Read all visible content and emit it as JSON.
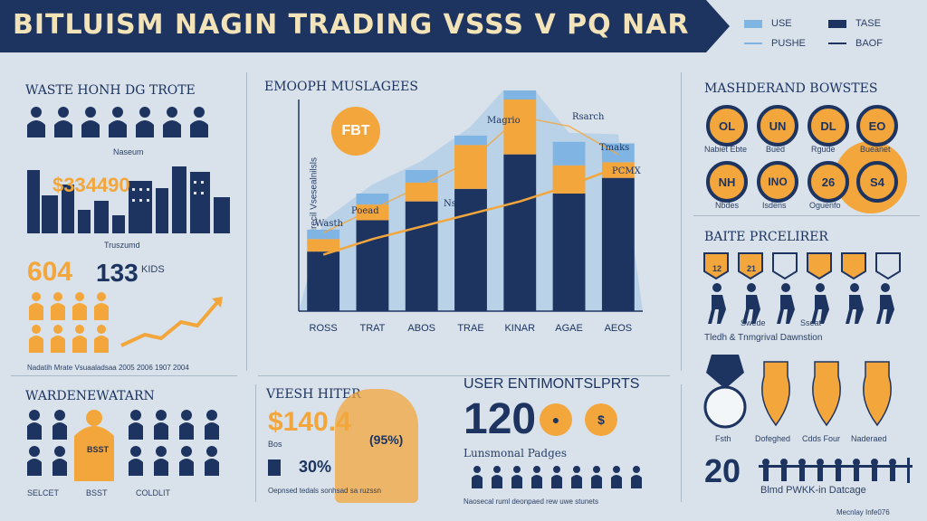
{
  "header": {
    "title": "BITLUISM NAGIN TRADING VSSS V PQ NAR"
  },
  "legend": [
    {
      "label": "USE",
      "kind": "swatch",
      "color": "#7fb4e3"
    },
    {
      "label": "TASE",
      "kind": "swatch",
      "color": "#1d3461"
    },
    {
      "label": "PUSHE",
      "kind": "dash",
      "color": "#7fb4e3"
    },
    {
      "label": "BAOF",
      "kind": "dash",
      "color": "#1d3461"
    }
  ],
  "left_top": {
    "title": "WASTE HONH DG TROTE",
    "caption": "Naseum",
    "building_value": "$334490",
    "building_caption": "Truszumd"
  },
  "left_mid": {
    "value_a": "604",
    "value_b": "133",
    "value_b_unit": "KIDS",
    "years_caption": "Nadatih Mrate Vsuaaladsaa 2005 2006 1907 2004"
  },
  "left_bottom": {
    "title": "WARDENEWATARN",
    "highlight_label": "BSST",
    "captions": [
      "SELCET",
      "BSST",
      "COLDLIT"
    ]
  },
  "center_chart": {
    "title": "EMOOPH MUSLAGEES",
    "badge": "FBT",
    "y_axis_label": "Dsdan Mrecil Vsesealnilsls",
    "annotations": [
      "Wasth",
      "Poead",
      "Nsulgn",
      "Magrio",
      "Rsarch",
      "Tmaks",
      "PCMX"
    ]
  },
  "chart_data": {
    "type": "bar",
    "title": "EMOOPH MUSLAGEES",
    "categories": [
      "ROSS",
      "TRAT",
      "ABOS",
      "TRAE",
      "KINAR",
      "AGAE",
      "AEOS"
    ],
    "series": [
      {
        "values": [
          38,
          58,
          70,
          78,
          100,
          75,
          85
        ]
      },
      {
        "values": [
          8,
          10,
          12,
          28,
          35,
          18,
          10
        ]
      },
      {
        "values": [
          6,
          7,
          8,
          6,
          12,
          15,
          12
        ]
      }
    ],
    "lines": [
      {
        "values": [
          36,
          46,
          54,
          62,
          70,
          80,
          92
        ]
      },
      {
        "values": [
          50,
          65,
          80,
          96,
          124,
          118,
          100
        ]
      }
    ],
    "ylim": [
      0,
      135
    ],
    "grid": false
  },
  "mid_bottom": {
    "title": "VEESH HITER",
    "value": "$140.4",
    "value_note": "(95%)",
    "pct": "30%",
    "pct_note": "Oepnsed tedals sonhsad sa ruzssn",
    "note": "Bos"
  },
  "user_stats": {
    "title": "USER ENTIMONTSLPRTS",
    "value": "120",
    "caption": "Lunsmonal Padges",
    "footer": "Naosecal ruml deonpaed rew uwe stunets"
  },
  "right_top": {
    "title": "MASHDERAND BOWSTES",
    "circles": [
      {
        "code": "OL",
        "label": "Nabiet Ebte"
      },
      {
        "code": "UN",
        "label": "Bued"
      },
      {
        "code": "DL",
        "label": "Rgude"
      },
      {
        "code": "EO",
        "label": "Bueanet"
      },
      {
        "code": "NH",
        "label": "Nbdes"
      },
      {
        "code": "INO",
        "label": "Isdens"
      },
      {
        "code": "26",
        "label": "Oguenfo"
      },
      {
        "code": "S4",
        "label": ""
      }
    ]
  },
  "right_mid": {
    "title": "BAITE PRCELIRER",
    "tags": [
      "12",
      "21",
      "",
      "",
      "",
      ""
    ],
    "labels": [
      "Swede",
      "Sseat"
    ],
    "caption": "Tledh & Tnmgrival Dawnstion"
  },
  "right_bottom": {
    "labels": [
      "Fsth",
      "Dofeghed",
      "Cdds Four",
      "Naderaed"
    ],
    "value": "20",
    "caption": "Blmd PWKK-in Datcage",
    "credit": "Mecnlay Infe076"
  },
  "colors": {
    "navy": "#1d3461",
    "light_blue": "#7fb4e3",
    "orange": "#f2a63c",
    "background": "#d9e2ea"
  },
  "icons": [
    "person-icon",
    "trend-arrow-icon",
    "building-icon",
    "medal-icon",
    "trophy-icon",
    "coin-icon"
  ]
}
